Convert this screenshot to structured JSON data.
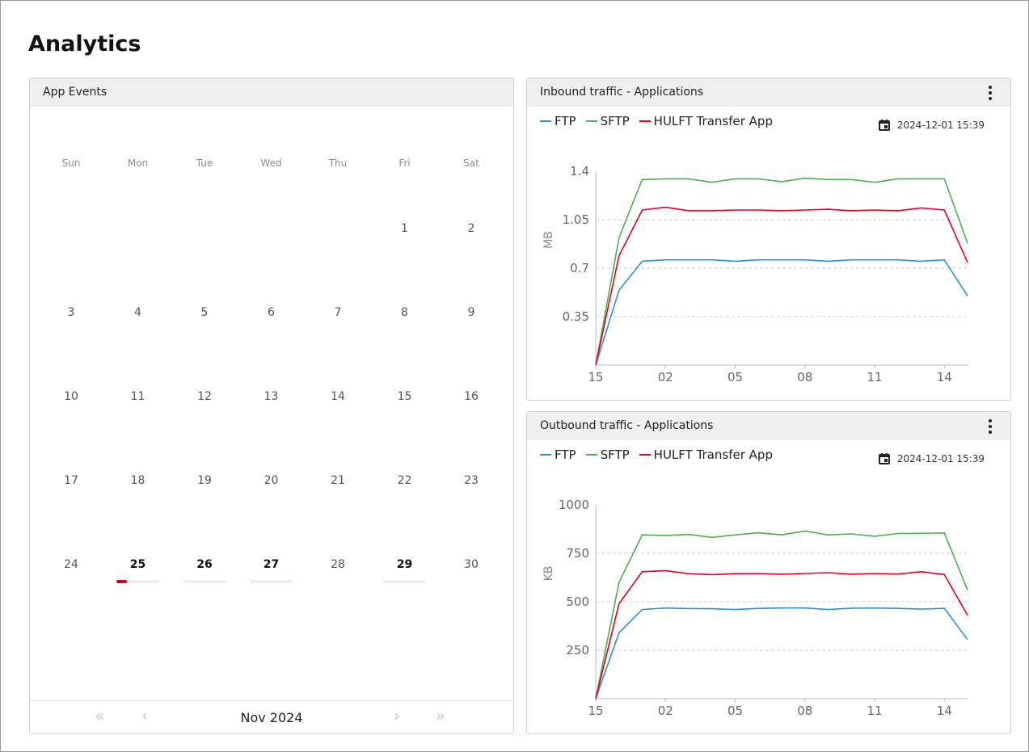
{
  "page": {
    "title": "Analytics"
  },
  "calendar": {
    "title": "App Events",
    "weekdays": [
      "Sun",
      "Mon",
      "Tue",
      "Wed",
      "Thu",
      "Fri",
      "Sat"
    ],
    "weeks": [
      [
        "",
        "",
        "",
        "",
        "",
        "1",
        "2"
      ],
      [
        "3",
        "4",
        "5",
        "6",
        "7",
        "8",
        "9"
      ],
      [
        "10",
        "11",
        "12",
        "13",
        "14",
        "15",
        "16"
      ],
      [
        "17",
        "18",
        "19",
        "20",
        "21",
        "22",
        "23"
      ],
      [
        "24",
        "25",
        "26",
        "27",
        "28",
        "29",
        "30"
      ]
    ],
    "event_days": [
      {
        "day": "25",
        "level": 0.25
      },
      {
        "day": "26",
        "level": 0
      },
      {
        "day": "27",
        "level": 0
      },
      {
        "day": "29",
        "level": 0
      }
    ],
    "accent_color": "#d0021b",
    "nav": {
      "first": "«",
      "prev": "‹",
      "next": "›",
      "last": "»"
    },
    "month_label": "Nov 2024"
  },
  "inbound": {
    "title": "Inbound traffic - Applications",
    "menu_icon": "kebab-menu-icon",
    "timestamp": "2024-12-01 15:39",
    "calendar_icon": "calendar-icon",
    "chart_data": {
      "type": "line",
      "ylabel": "MB",
      "ylim": [
        0,
        1.4
      ],
      "yticks": [
        "1.4",
        "1.05",
        "0.7",
        "0.35"
      ],
      "ytick_values": [
        1.4,
        1.05,
        0.7,
        0.35
      ],
      "xticks": [
        "15",
        "02",
        "05",
        "08",
        "11",
        "14"
      ],
      "xtick_index": [
        0,
        3,
        6,
        9,
        12,
        15
      ],
      "x_count": 17,
      "grid": "horizontal-dashed",
      "series": [
        {
          "name": "FTP",
          "color": "#2e8fd8",
          "values": [
            0,
            0.54,
            0.75,
            0.76,
            0.76,
            0.76,
            0.75,
            0.76,
            0.76,
            0.76,
            0.75,
            0.76,
            0.76,
            0.76,
            0.75,
            0.76,
            0.5
          ]
        },
        {
          "name": "SFTP",
          "color": "#4caf50",
          "values": [
            0,
            0.92,
            1.34,
            1.345,
            1.345,
            1.32,
            1.345,
            1.345,
            1.325,
            1.35,
            1.34,
            1.34,
            1.32,
            1.345,
            1.345,
            1.345,
            0.88
          ]
        },
        {
          "name": "HULFT Transfer App",
          "color": "#e8001c",
          "values": [
            0,
            0.79,
            1.12,
            1.14,
            1.115,
            1.115,
            1.12,
            1.12,
            1.115,
            1.12,
            1.125,
            1.115,
            1.12,
            1.115,
            1.135,
            1.12,
            0.74
          ]
        }
      ]
    }
  },
  "outbound": {
    "title": "Outbound traffic - Applications",
    "menu_icon": "kebab-menu-icon",
    "timestamp": "2024-12-01 15:39",
    "calendar_icon": "calendar-icon",
    "chart_data": {
      "type": "line",
      "ylabel": "KB",
      "ylim": [
        0,
        1000
      ],
      "yticks": [
        "1000",
        "750",
        "500",
        "250"
      ],
      "ytick_values": [
        1000,
        750,
        500,
        250
      ],
      "xticks": [
        "15",
        "02",
        "05",
        "08",
        "11",
        "14"
      ],
      "xtick_index": [
        0,
        3,
        6,
        9,
        12,
        15
      ],
      "x_count": 17,
      "grid": "horizontal-dashed",
      "series": [
        {
          "name": "FTP",
          "color": "#2e8fd8",
          "values": [
            0,
            340,
            460,
            468,
            465,
            464,
            460,
            466,
            468,
            468,
            460,
            467,
            468,
            466,
            462,
            466,
            305
          ]
        },
        {
          "name": "SFTP",
          "color": "#4caf50",
          "values": [
            0,
            600,
            845,
            842,
            847,
            832,
            845,
            856,
            845,
            865,
            845,
            850,
            838,
            852,
            853,
            855,
            560
          ]
        },
        {
          "name": "HULFT Transfer App",
          "color": "#e8001c",
          "values": [
            0,
            490,
            655,
            660,
            645,
            640,
            645,
            646,
            642,
            646,
            650,
            642,
            646,
            643,
            655,
            640,
            430
          ]
        }
      ]
    }
  }
}
